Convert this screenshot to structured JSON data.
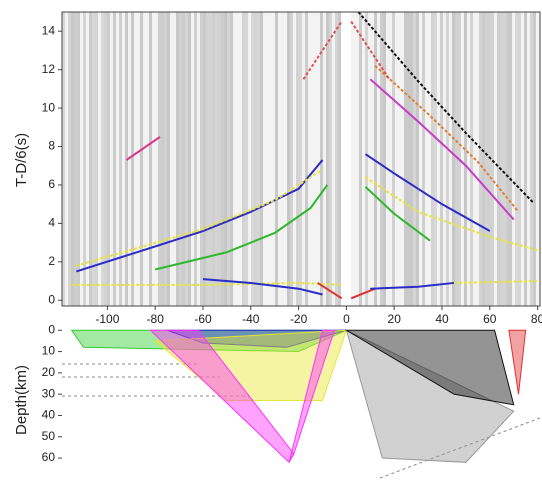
{
  "chart_data": [
    {
      "type": "line",
      "y_label": "T-D/6(s)",
      "xlim": [
        -119,
        81
      ],
      "ylim": [
        -0.3,
        15
      ],
      "xticks": [
        -100,
        -80,
        -60,
        -40,
        -20,
        0,
        20,
        40,
        60,
        80
      ],
      "yticks": [
        0,
        2,
        4,
        6,
        8,
        10,
        12,
        14
      ],
      "series": [
        {
          "color": "#2b2bc8",
          "x": [
            -113,
            -80,
            -60,
            -40,
            -20,
            -10
          ],
          "values": [
            1.5,
            2.8,
            3.6,
            4.6,
            5.8,
            7.3
          ]
        },
        {
          "color": "#2eb82e",
          "x": [
            -80,
            -50,
            -30,
            -15,
            -8
          ],
          "values": [
            1.6,
            2.5,
            3.5,
            4.8,
            6.0
          ]
        },
        {
          "color": "#e6e633",
          "dashed": true,
          "x": [
            -113,
            -60,
            -30,
            -10
          ],
          "values": [
            1.8,
            3.7,
            5.2,
            6.8
          ]
        },
        {
          "color": "#e6e633",
          "dashed": true,
          "x": [
            -115,
            -60,
            -20,
            -2
          ],
          "values": [
            0.8,
            0.8,
            0.9,
            0.8
          ]
        },
        {
          "color": "#2b2bc8",
          "x": [
            -60,
            -40,
            -20,
            -10
          ],
          "values": [
            1.1,
            0.9,
            0.6,
            0.3
          ]
        },
        {
          "color": "#e03030",
          "x": [
            -12,
            -2
          ],
          "values": [
            0.9,
            0.1
          ]
        },
        {
          "color": "#e03030",
          "x": [
            2,
            12
          ],
          "values": [
            0.1,
            0.6
          ]
        },
        {
          "color": "#e0308a",
          "x": [
            -92,
            -78
          ],
          "values": [
            7.3,
            8.5
          ]
        },
        {
          "color": "#2b2bc8",
          "x": [
            8,
            20,
            40,
            60
          ],
          "values": [
            7.6,
            6.6,
            5.0,
            3.6
          ]
        },
        {
          "color": "#2eb82e",
          "x": [
            8,
            20,
            35
          ],
          "values": [
            5.9,
            4.5,
            3.1
          ]
        },
        {
          "color": "#e6e633",
          "dashed": true,
          "x": [
            8,
            30,
            60,
            80
          ],
          "values": [
            6.4,
            4.6,
            3.3,
            2.6
          ]
        },
        {
          "color": "#c83cc8",
          "x": [
            10,
            30,
            50,
            70
          ],
          "values": [
            11.5,
            9.3,
            7.0,
            4.2
          ]
        },
        {
          "color": "#e08030",
          "dashed": true,
          "x": [
            12,
            35,
            55,
            72
          ],
          "values": [
            12.2,
            9.6,
            7.2,
            4.6
          ]
        },
        {
          "color": "#111111",
          "dashed": true,
          "x": [
            5,
            30,
            50,
            78
          ],
          "values": [
            15,
            11.4,
            8.7,
            5.1
          ]
        },
        {
          "color": "#2b2bc8",
          "x": [
            10,
            30,
            45
          ],
          "values": [
            0.6,
            0.7,
            0.9
          ]
        },
        {
          "color": "#e6e633",
          "dashed": true,
          "x": [
            45,
            80
          ],
          "values": [
            0.9,
            1.0
          ]
        },
        {
          "color": "#e05050",
          "dashed": true,
          "x": [
            -18,
            -2
          ],
          "values": [
            11.5,
            14.5
          ]
        },
        {
          "color": "#e05050",
          "dashed": true,
          "x": [
            2,
            18
          ],
          "values": [
            14.5,
            11.5
          ]
        }
      ]
    },
    {
      "type": "ray",
      "y_label": "Depth(km)",
      "xlim": [
        -119,
        81
      ],
      "ylim": [
        -2,
        75
      ],
      "yticks": [
        0,
        10,
        20,
        30,
        40,
        50,
        60
      ],
      "series": [
        {
          "color": "#33cc33",
          "x": [
            -115,
            0,
            -20,
            -110
          ],
          "values": [
            0,
            0,
            10,
            8
          ]
        },
        {
          "color": "#2b2bc8",
          "x": [
            -75,
            0,
            -25,
            -60
          ],
          "values": [
            0,
            0,
            8,
            6
          ]
        },
        {
          "color": "#e6e633",
          "x": [
            0,
            -10,
            -50,
            -80
          ],
          "values": [
            0,
            33,
            33,
            5
          ]
        },
        {
          "color": "#ff33ff",
          "x": [
            -82,
            -62,
            -22,
            -24
          ],
          "values": [
            0,
            0,
            58,
            62
          ]
        },
        {
          "color": "#ff33ff",
          "x": [
            -24,
            -22,
            -5,
            -10
          ],
          "values": [
            62,
            58,
            0,
            0
          ]
        },
        {
          "color": "#999999",
          "x": [
            0,
            15,
            50,
            70
          ],
          "values": [
            0,
            60,
            62,
            38
          ]
        },
        {
          "color": "#111111",
          "x": [
            0,
            62,
            70,
            45
          ],
          "values": [
            0,
            0,
            35,
            30
          ]
        },
        {
          "color": "#e03030",
          "x": [
            68,
            75,
            72
          ],
          "values": [
            0,
            0,
            30
          ]
        }
      ]
    }
  ]
}
